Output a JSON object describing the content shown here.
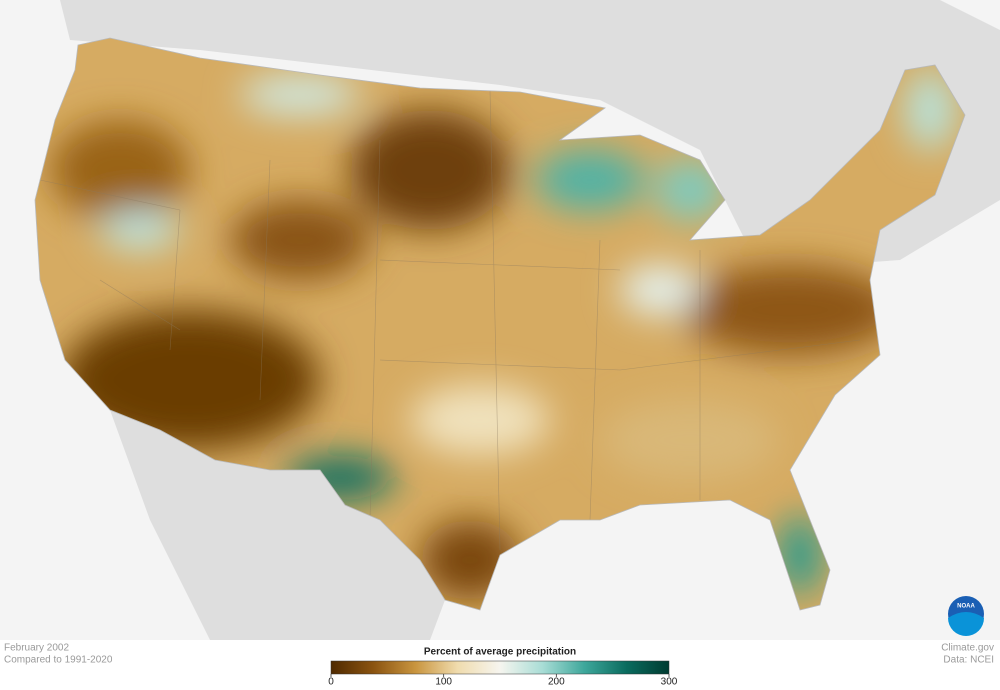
{
  "map": {
    "date": "February 2002",
    "comparison": "Compared to 1991-2020",
    "credit": "Climate.gov",
    "source": "Data: NCEI",
    "logo": "NOAA"
  },
  "legend": {
    "title": "Percent of average precipitation",
    "range": [
      0,
      300
    ],
    "ticks": [
      0,
      100,
      200,
      300
    ],
    "stops": [
      "#4f2a00",
      "#8a5310",
      "#c9953f",
      "#f0dcae",
      "#f6f5ef",
      "#a9ddd6",
      "#3ea79b",
      "#0a6b5e",
      "#003b31"
    ]
  }
}
